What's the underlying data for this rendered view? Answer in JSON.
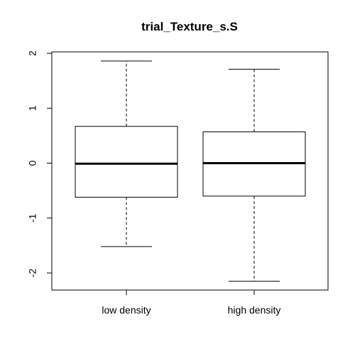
{
  "chart_data": {
    "type": "boxplot",
    "title": "trial_Texture_s.S",
    "xlabel": "",
    "ylabel": "",
    "ylim": [
      -2.3,
      2.0
    ],
    "yticks": [
      -2,
      -1,
      0,
      1,
      2
    ],
    "ytick_labels": [
      "-2",
      "-1",
      "0",
      "1",
      "2"
    ],
    "grid": false,
    "legend": "none",
    "categories": [
      "low density",
      "high density"
    ],
    "boxes": [
      {
        "name": "low density",
        "whisker_low": -1.52,
        "q1": -0.62,
        "median": -0.01,
        "q3": 0.67,
        "whisker_high": 1.86
      },
      {
        "name": "high density",
        "whisker_low": -2.15,
        "q1": -0.6,
        "median": 0.0,
        "q3": 0.57,
        "whisker_high": 1.71
      }
    ],
    "colors": {
      "box_fill": "#ffffff",
      "stroke": "#000000"
    }
  }
}
